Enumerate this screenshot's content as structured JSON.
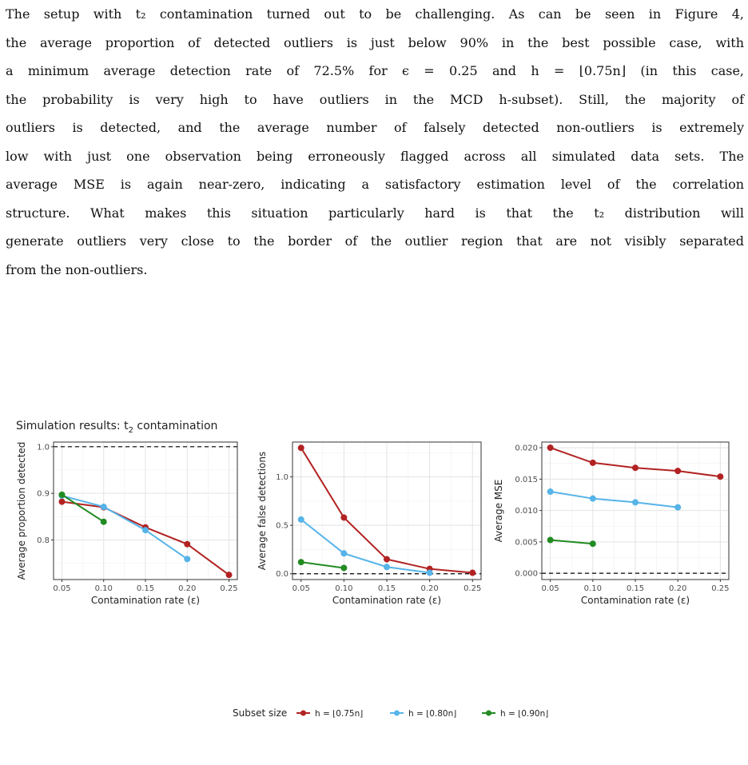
{
  "paragraph": {
    "lines": [
      "The setup with t₂ contamination turned out to be challenging. As can be seen in Figure 4,",
      "the average proportion of detected outliers is just below 90% in the best possible case, with",
      "a minimum average detection rate of 72.5% for ϵ = 0.25 and h = ⌊0.75n⌋ (in this case,",
      "the probability is very high to have outliers in the MCD h-subset). Still, the majority of",
      "outliers is detected, and the average number of falsely detected non-outliers is extremely",
      "low with just one observation being erroneously flagged across all simulated data sets. The",
      "average MSE is again near-zero, indicating a satisfactory estimation level of the correlation",
      "structure. What makes this situation particularly hard is that the t₂ distribution will",
      "generate outliers very close to the border of the outlier region that are not visibly separated",
      "from the non-outliers."
    ]
  },
  "figure": {
    "title_main": "Simulation results: t",
    "title_sub": "2",
    "title_rest": " contamination",
    "legend_title": "Subset size",
    "colors": {
      "red": "#b22222",
      "blue": "#56b4e9",
      "green": "#228b22"
    }
  },
  "chart_data": [
    {
      "type": "line",
      "title": "",
      "xlabel": "Contamination rate (ε)",
      "ylabel": "Average proportion detected",
      "x_ticks": [
        "0.05",
        "0.10",
        "0.15",
        "0.20",
        "0.25"
      ],
      "y_ticks": [
        "0.8",
        "0.9",
        "1.0"
      ],
      "xlim": [
        0.04,
        0.26
      ],
      "ylim": [
        0.715,
        1.01
      ],
      "reference_line": 1.0,
      "series": [
        {
          "name": "h = ⌊0.75n⌋",
          "x": [
            0.05,
            0.1,
            0.15,
            0.2,
            0.25
          ],
          "y": [
            0.882,
            0.87,
            0.827,
            0.791,
            0.725
          ]
        },
        {
          "name": "h = ⌊0.80n⌋",
          "x": [
            0.05,
            0.1,
            0.15,
            0.2
          ],
          "y": [
            0.895,
            0.871,
            0.821,
            0.759
          ]
        },
        {
          "name": "h = ⌊0.90n⌋",
          "x": [
            0.05,
            0.1
          ],
          "y": [
            0.897,
            0.839
          ]
        }
      ]
    },
    {
      "type": "line",
      "title": "",
      "xlabel": "Contamination rate (ε)",
      "ylabel": "Average false detections",
      "x_ticks": [
        "0.05",
        "0.10",
        "0.15",
        "0.20",
        "0.25"
      ],
      "y_ticks": [
        "0.0",
        "0.5",
        "1.0"
      ],
      "xlim": [
        0.04,
        0.26
      ],
      "ylim": [
        -0.06,
        1.36
      ],
      "reference_line": 0.0,
      "series": [
        {
          "name": "h = ⌊0.75n⌋",
          "x": [
            0.05,
            0.1,
            0.15,
            0.2,
            0.25
          ],
          "y": [
            1.3,
            0.58,
            0.15,
            0.05,
            0.01
          ]
        },
        {
          "name": "h = ⌊0.80n⌋",
          "x": [
            0.05,
            0.1,
            0.15,
            0.2
          ],
          "y": [
            0.56,
            0.21,
            0.07,
            0.01
          ]
        },
        {
          "name": "h = ⌊0.90n⌋",
          "x": [
            0.05,
            0.1
          ],
          "y": [
            0.12,
            0.06
          ]
        }
      ]
    },
    {
      "type": "line",
      "title": "",
      "xlabel": "Contamination rate (ε)",
      "ylabel": "Average MSE",
      "x_ticks": [
        "0.05",
        "0.10",
        "0.15",
        "0.20",
        "0.25"
      ],
      "y_ticks": [
        "0.000",
        "0.005",
        "0.010",
        "0.015",
        "0.020"
      ],
      "xlim": [
        0.04,
        0.26
      ],
      "ylim": [
        -0.001,
        0.0209
      ],
      "reference_line": 0.0,
      "series": [
        {
          "name": "h = ⌊0.75n⌋",
          "x": [
            0.05,
            0.1,
            0.15,
            0.2,
            0.25
          ],
          "y": [
            0.02,
            0.0176,
            0.0168,
            0.0163,
            0.0154
          ]
        },
        {
          "name": "h = ⌊0.80n⌋",
          "x": [
            0.05,
            0.1,
            0.15,
            0.2
          ],
          "y": [
            0.013,
            0.0119,
            0.0113,
            0.0105
          ]
        },
        {
          "name": "h = ⌊0.90n⌋",
          "x": [
            0.05,
            0.1
          ],
          "y": [
            0.0053,
            0.0047
          ]
        }
      ]
    }
  ]
}
